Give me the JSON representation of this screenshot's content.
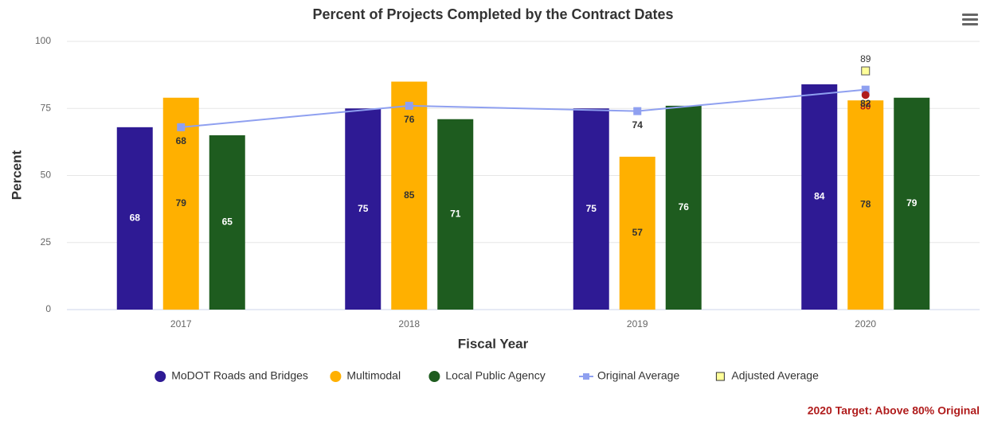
{
  "chart_data": {
    "type": "bar",
    "title": "Percent of Projects Completed by the Contract Dates",
    "x_label": "Fiscal Year",
    "y_label": "Percent",
    "categories": [
      "2017",
      "2018",
      "2019",
      "2020"
    ],
    "series": [
      {
        "name": "MoDOT Roads and Bridges",
        "type": "bar",
        "color": "#2e1a94",
        "values": [
          68,
          75,
          75,
          84
        ]
      },
      {
        "name": "Multimodal",
        "type": "bar",
        "color": "#ffb000",
        "values": [
          79,
          85,
          57,
          78
        ]
      },
      {
        "name": "Local Public Agency",
        "type": "bar",
        "color": "#1e5c1f",
        "values": [
          65,
          71,
          76,
          79
        ]
      },
      {
        "name": "Original Average",
        "type": "line",
        "color": "#8fa0f0",
        "values": [
          68,
          76,
          74,
          82
        ]
      },
      {
        "name": "Adjusted Average",
        "type": "marker",
        "color": "#ffff99",
        "values": [
          null,
          null,
          null,
          89
        ]
      }
    ],
    "target": {
      "value": 80,
      "color": "#b01c1c",
      "category": "2020"
    },
    "annotation": "2020 Target: Above 80% Original",
    "ylim": [
      0,
      100
    ],
    "yticks": [
      0,
      25,
      50,
      75,
      100
    ],
    "grid": true,
    "legend": "bottom"
  }
}
